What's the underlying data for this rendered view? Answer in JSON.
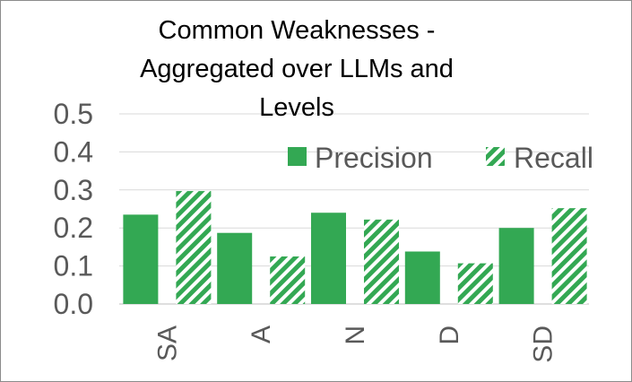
{
  "chart_data": {
    "type": "bar",
    "title_lines": [
      "Common Weaknesses -",
      "Aggregated over LLMs and",
      "Levels"
    ],
    "categories": [
      "SA",
      "A",
      "N",
      "D",
      "SD"
    ],
    "series": [
      {
        "name": "Precision",
        "values": [
          0.235,
          0.187,
          0.24,
          0.138,
          0.2
        ]
      },
      {
        "name": "Recall",
        "values": [
          0.297,
          0.125,
          0.222,
          0.107,
          0.252
        ]
      }
    ],
    "ylim": [
      0,
      0.5
    ],
    "yticks": [
      "0.0",
      "0.1",
      "0.2",
      "0.3",
      "0.4",
      "0.5"
    ],
    "grid": true,
    "legend_position": "top-right",
    "colors": {
      "primary": "#33a853",
      "grid": "#d9d9d9",
      "text": "#595959"
    }
  }
}
